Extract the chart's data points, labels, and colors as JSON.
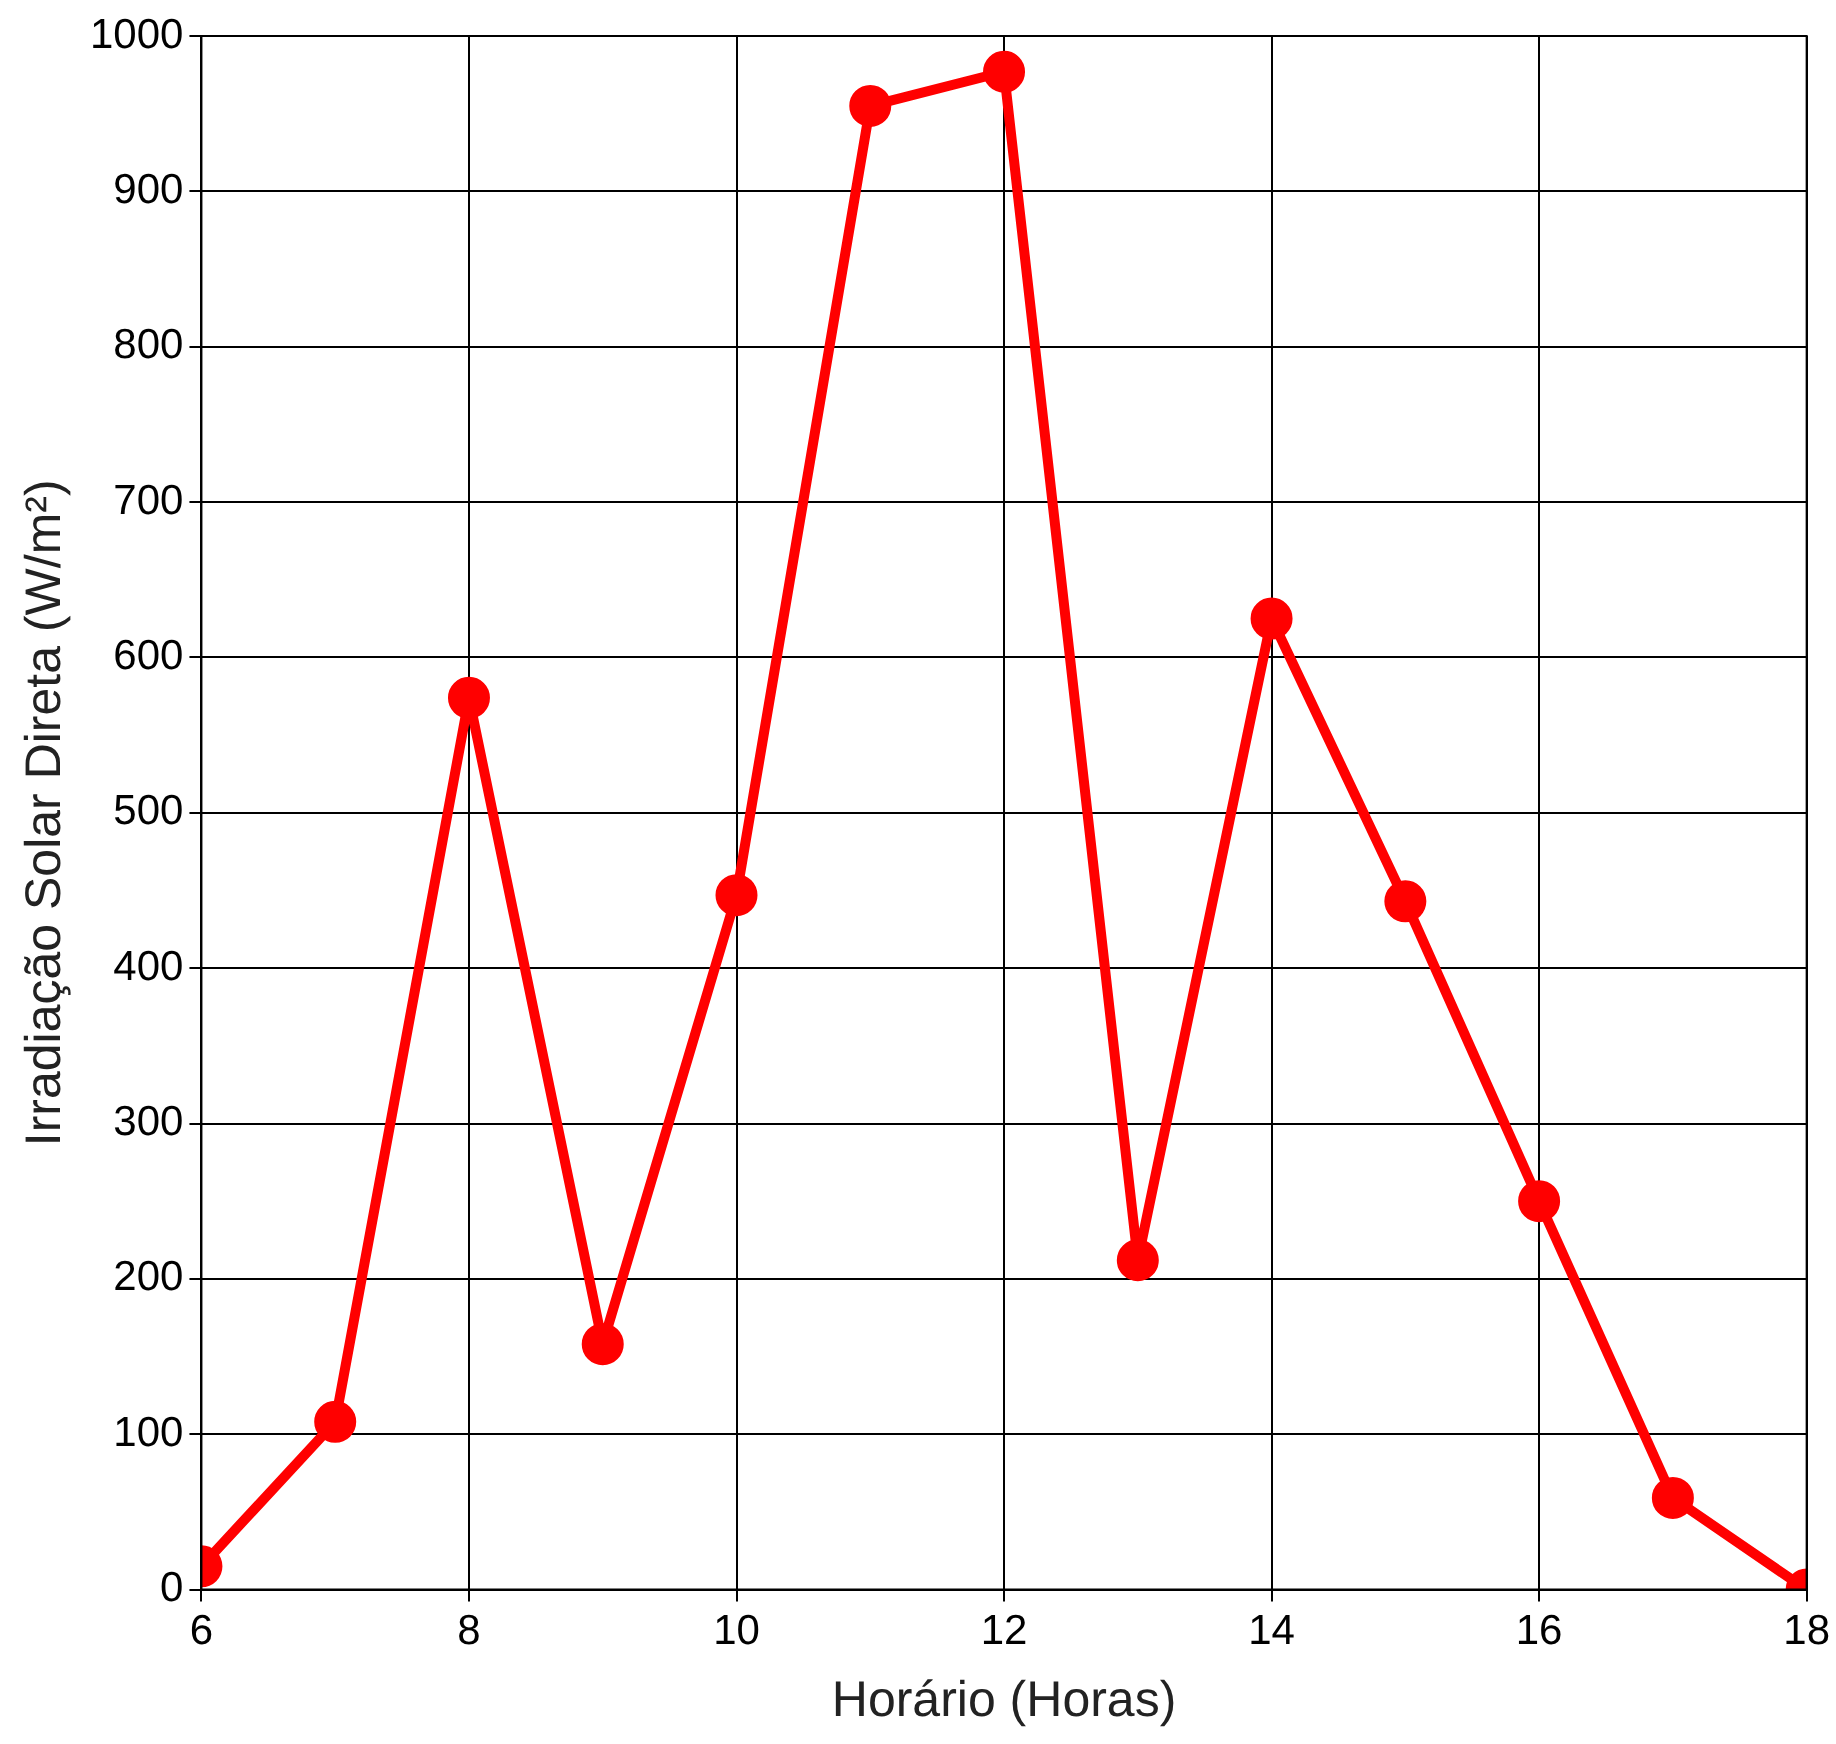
{
  "chart_data": {
    "type": "line",
    "xlabel": "Horário (Horas)",
    "ylabel": "Irradiação Solar Direta (W/m²)",
    "x": [
      6,
      7,
      8,
      9,
      10,
      11,
      12,
      13,
      14,
      15,
      16,
      17,
      18
    ],
    "series": [
      {
        "color": "#ff0000",
        "values": [
          15,
          108,
          574,
          158,
          447,
          955,
          977,
          212,
          625,
          443,
          250,
          59,
          0
        ]
      }
    ],
    "xlim": [
      6,
      18
    ],
    "xticks": [
      6,
      8,
      10,
      12,
      14,
      16,
      18
    ],
    "ylim": [
      0,
      1000
    ],
    "yticks": [
      0,
      100,
      200,
      300,
      400,
      500,
      600,
      700,
      800,
      900,
      1000
    ],
    "grid": true,
    "legend": false,
    "marker": "circle",
    "line_style": "solid"
  }
}
